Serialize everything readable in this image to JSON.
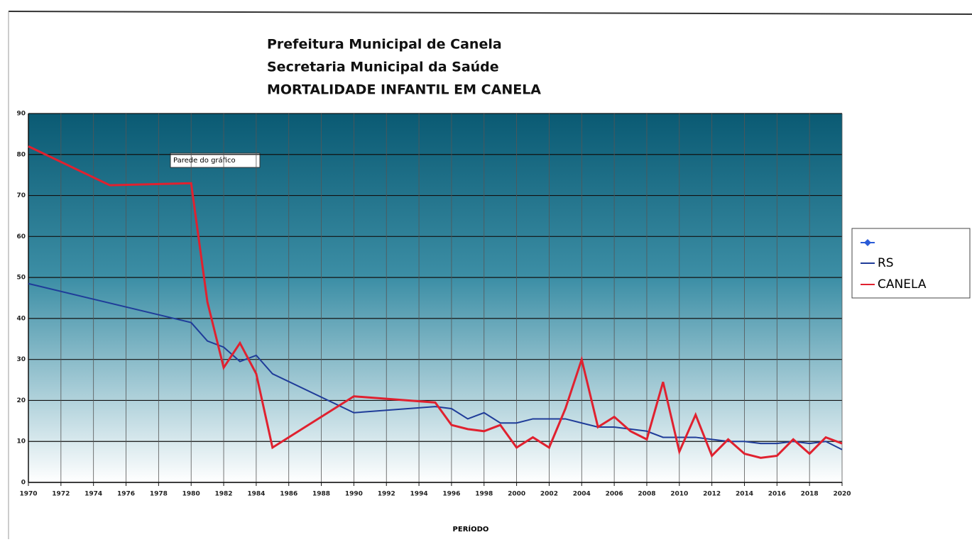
{
  "chart_data": {
    "type": "line",
    "title": [
      "Prefeitura Municipal de Canela",
      "Secretaria Municipal da Saúde",
      "MORTALIDADE INFANTIL EM CANELA"
    ],
    "xlabel": "PERÍODO",
    "annotation": "Parede do gráfico",
    "xlim": [
      1970,
      2020
    ],
    "xticks": [
      1970,
      1972,
      1974,
      1976,
      1978,
      1980,
      1982,
      1984,
      1986,
      1988,
      1990,
      1992,
      1994,
      1996,
      1998,
      2000,
      2002,
      2004,
      2006,
      2008,
      2010,
      2012,
      2014,
      2016,
      2018,
      2020
    ],
    "ylim": [
      0,
      90
    ],
    "yticks": [
      0,
      10,
      20,
      30,
      40,
      50,
      60,
      70,
      80,
      90
    ],
    "grid": true,
    "series": [
      {
        "name": "RS",
        "color": "#1f3c99",
        "x": [
          1970,
          1980,
          1981,
          1982,
          1983,
          1984,
          1985,
          1990,
          1995,
          1996,
          1997,
          1998,
          1999,
          2000,
          2001,
          2002,
          2003,
          2004,
          2005,
          2006,
          2007,
          2008,
          2009,
          2010,
          2011,
          2012,
          2013,
          2014,
          2015,
          2016,
          2017,
          2018,
          2019,
          2020
        ],
        "values": [
          48.5,
          39,
          34.5,
          33,
          29.5,
          31,
          26.5,
          17,
          18.5,
          18,
          15.5,
          17,
          14.5,
          14.5,
          15.5,
          15.5,
          15.5,
          14.5,
          13.5,
          13.5,
          13,
          12.5,
          11,
          11,
          11,
          10.5,
          10,
          10,
          9.5,
          9.5,
          10,
          9.5,
          10,
          8
        ]
      },
      {
        "name": "CANELA",
        "color": "#e0212f",
        "x": [
          1970,
          1975,
          1980,
          1981,
          1982,
          1983,
          1984,
          1985,
          1990,
          1995,
          1996,
          1997,
          1998,
          1999,
          2000,
          2001,
          2002,
          2003,
          2004,
          2005,
          2006,
          2007,
          2008,
          2009,
          2010,
          2011,
          2012,
          2013,
          2014,
          2015,
          2016,
          2017,
          2018,
          2019,
          2020
        ],
        "values": [
          82,
          72.5,
          73,
          44,
          28,
          34,
          26.5,
          8.5,
          21,
          19.5,
          14,
          13,
          12.5,
          14,
          8.5,
          11,
          8.5,
          18,
          30,
          13.5,
          16,
          12.5,
          10.5,
          24.5,
          7.5,
          16.5,
          6.5,
          10.5,
          7,
          6,
          6.5,
          10.5,
          7,
          11,
          9.5
        ]
      }
    ]
  }
}
